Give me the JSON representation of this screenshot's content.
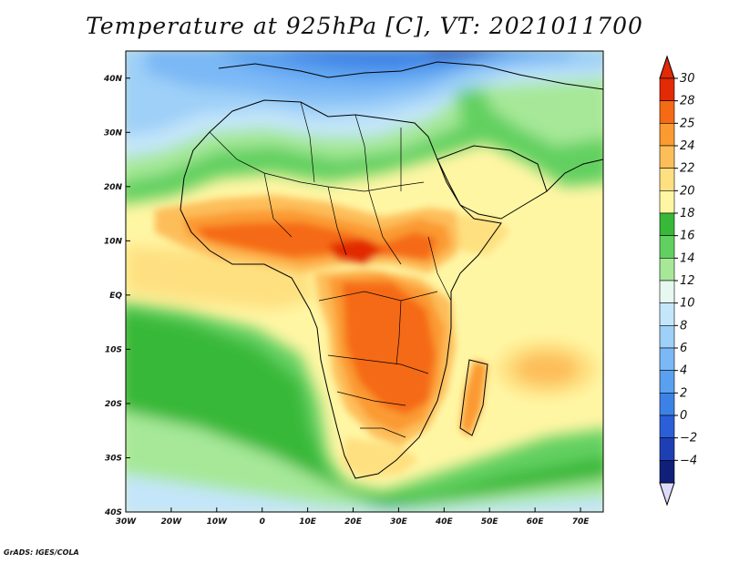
{
  "title": "Temperature at 925hPa [C], VT: 2021011700",
  "credit": "GrADS: IGES/COLA",
  "units": "C",
  "colors": {
    "t_m4": "#10207a",
    "t_m2": "#1e3fb4",
    "t_0": "#2a5fd8",
    "t_2": "#3c82e6",
    "t_4": "#5aa0f0",
    "t_6": "#7ab8f6",
    "t_8": "#9ed0f8",
    "t_10": "#c4e6fa",
    "t_12": "#e6f8f0",
    "t_14": "#a6e898",
    "t_16": "#62d060",
    "t_18": "#38b838",
    "t_20": "#fff6a4",
    "t_22": "#fee080",
    "t_24": "#fdbe5a",
    "t_25": "#fb9a30",
    "t_28": "#f56a14",
    "t_30": "#e22a06",
    "below": "#dcdcfa"
  },
  "map": {
    "lon_range": [
      -30,
      75
    ],
    "lat_range": [
      -40,
      45
    ],
    "lon_ticks": [
      "30W",
      "20W",
      "10W",
      "0",
      "10E",
      "20E",
      "30E",
      "40E",
      "50E",
      "60E",
      "70E"
    ],
    "lat_ticks": [
      "40S",
      "30S",
      "20S",
      "10S",
      "EQ",
      "10N",
      "20N",
      "30N",
      "40N"
    ]
  },
  "colorbar": {
    "labels": [
      "30",
      "28",
      "25",
      "24",
      "22",
      "20",
      "18",
      "16",
      "14",
      "12",
      "10",
      "8",
      "6",
      "4",
      "2",
      "0",
      "-2",
      "-4"
    ]
  }
}
